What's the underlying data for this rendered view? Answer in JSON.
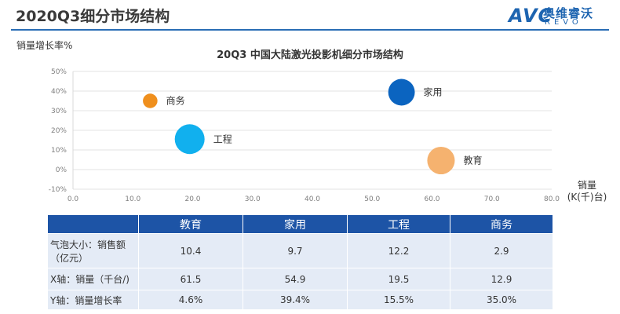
{
  "page": {
    "title": "2020Q3细分市场结构"
  },
  "logo": {
    "mark": "AVC",
    "cn": "奥维睿沃",
    "en": "REVO"
  },
  "colors": {
    "accent": "#1d54a6",
    "table_body": "#e4ebf6",
    "家用": "#0b64c0",
    "工程": "#11b0ee",
    "教育": "#f5b26f",
    "商务": "#ef8f1d"
  },
  "chart_data": {
    "type": "scatter",
    "title": "20Q3 中国大陆激光投影机细分市场结构",
    "ylabel": "销量增长率%",
    "xlabel_line1": "销量",
    "xlabel_line2": "(K(千)台)",
    "xlim": [
      0,
      80
    ],
    "ylim": [
      -10,
      50
    ],
    "xticks": [
      "0.0",
      "10.0",
      "20.0",
      "30.0",
      "40.0",
      "50.0",
      "60.0",
      "70.0",
      "80.0"
    ],
    "yticks": [
      "50%",
      "40%",
      "30%",
      "20%",
      "10%",
      "0%",
      "-10%"
    ],
    "points": [
      {
        "name": "教育",
        "x": 61.5,
        "y": 4.6,
        "size": 10.4,
        "color": "#f5b26f"
      },
      {
        "name": "家用",
        "x": 54.9,
        "y": 39.4,
        "size": 9.7,
        "color": "#0b64c0"
      },
      {
        "name": "工程",
        "x": 19.5,
        "y": 15.5,
        "size": 12.2,
        "color": "#11b0ee"
      },
      {
        "name": "商务",
        "x": 12.9,
        "y": 35.0,
        "size": 2.9,
        "color": "#ef8f1d"
      }
    ]
  },
  "table": {
    "headers": [
      "教育",
      "家用",
      "工程",
      "商务"
    ],
    "rows": [
      {
        "label": "气泡大小：销售额\n（亿元）",
        "cells": [
          "10.4",
          "9.7",
          "12.2",
          "2.9"
        ]
      },
      {
        "label": "X轴：销量（千台/)",
        "cells": [
          "61.5",
          "54.9",
          "19.5",
          "12.9"
        ]
      },
      {
        "label": "Y轴：销量增长率",
        "cells": [
          "4.6%",
          "39.4%",
          "15.5%",
          "35.0%"
        ]
      }
    ]
  }
}
